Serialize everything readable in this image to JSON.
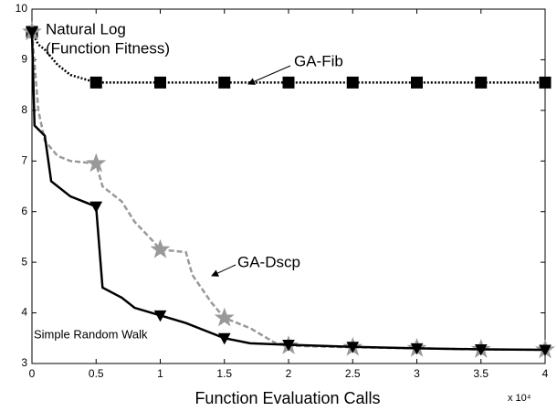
{
  "chart_data": {
    "type": "line",
    "x_label": "Function Evaluation Calls",
    "x_multiplier": "x 10⁴",
    "annotations": [
      "Natural Log",
      "(Function Fitness)",
      "GA-Fib",
      "GA-Dscp",
      "Simple Random Walk"
    ],
    "xlim": [
      0,
      4
    ],
    "xticks": [
      0,
      0.5,
      1,
      1.5,
      2,
      2.5,
      3,
      3.5,
      4
    ],
    "ylim": [
      3,
      10
    ],
    "yticks": [
      3,
      4,
      5,
      6,
      7,
      8,
      9,
      10
    ],
    "series": [
      {
        "name": "GA-Fib",
        "color": "#000000",
        "style": "dotted",
        "marker": "square",
        "x": [
          0,
          0.05,
          0.1,
          0.2,
          0.3,
          0.5,
          1,
          1.5,
          2,
          2.5,
          3,
          3.5,
          4
        ],
        "values": [
          9.55,
          9.3,
          9.2,
          8.9,
          8.7,
          8.55,
          8.55,
          8.55,
          8.55,
          8.55,
          8.55,
          8.55,
          8.55
        ]
      },
      {
        "name": "GA-Dscp",
        "color": "#999999",
        "style": "dashed",
        "marker": "star",
        "x": [
          0,
          0.05,
          0.1,
          0.2,
          0.3,
          0.5,
          0.55,
          0.7,
          0.8,
          0.95,
          1,
          1.2,
          1.25,
          1.4,
          1.5,
          1.7,
          1.9,
          2,
          2.5,
          3,
          3.5,
          4
        ],
        "values": [
          9.55,
          8.0,
          7.4,
          7.1,
          7.0,
          6.95,
          6.5,
          6.2,
          5.8,
          5.4,
          5.25,
          5.2,
          4.75,
          4.2,
          3.9,
          3.7,
          3.4,
          3.35,
          3.32,
          3.3,
          3.28,
          3.27
        ]
      },
      {
        "name": "Simple Random Walk",
        "color": "#000000",
        "style": "solid",
        "marker": "triangle",
        "x": [
          0,
          0.02,
          0.1,
          0.15,
          0.3,
          0.5,
          0.55,
          0.7,
          0.8,
          1,
          1.2,
          1.4,
          1.5,
          1.7,
          2,
          2.5,
          3,
          3.5,
          4
        ],
        "values": [
          9.55,
          7.7,
          7.5,
          6.6,
          6.3,
          6.1,
          4.5,
          4.3,
          4.1,
          3.95,
          3.8,
          3.6,
          3.5,
          3.4,
          3.37,
          3.33,
          3.3,
          3.28,
          3.27
        ]
      }
    ]
  }
}
